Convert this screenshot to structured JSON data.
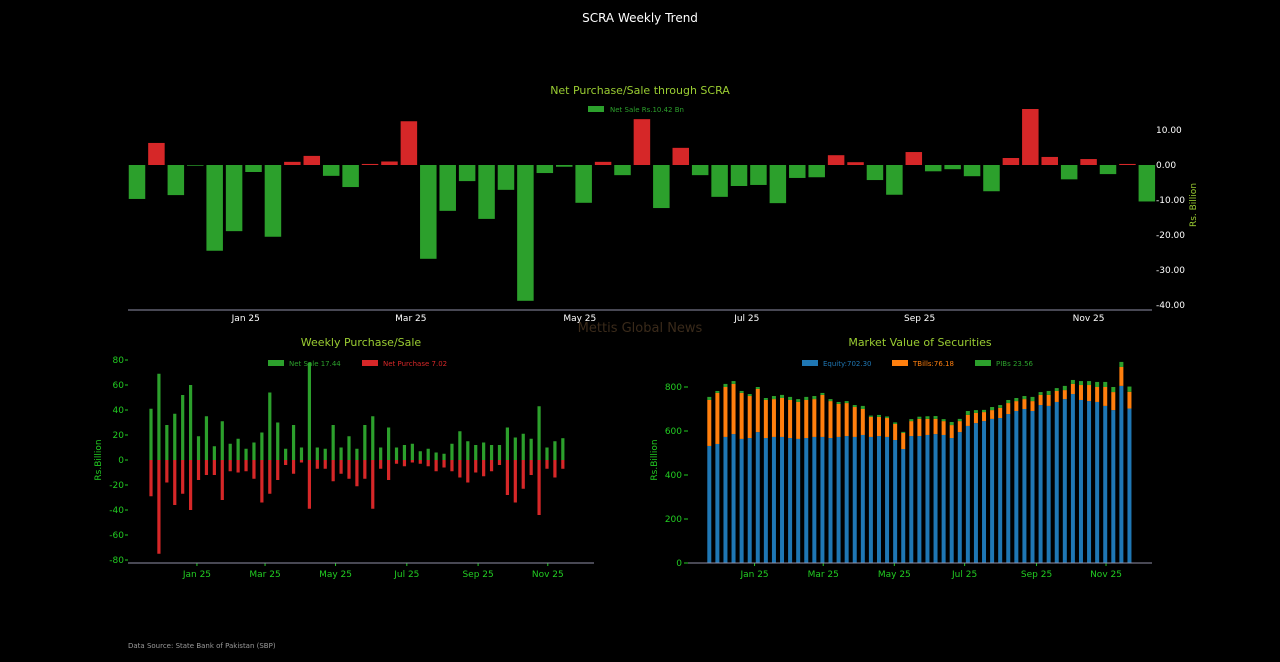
{
  "page": {
    "title": "SCRA Weekly Trend",
    "watermark": "Mettis Global News",
    "source": "Data Source: State Bank of Pakistan (SBP)"
  },
  "colors": {
    "sale": "#2ca02c",
    "purchase": "#d62728",
    "equity": "#1f77b4",
    "tbills": "#ff7f0e",
    "pibs": "#2ca02c",
    "title": "#9acd32",
    "axis_green": "#22cc22",
    "axis_white": "#ffffff"
  },
  "chart_data": [
    {
      "id": "net",
      "type": "bar",
      "title": "Net Purchase/Sale through SCRA",
      "legend": [
        "Net Sale Rs.10.42 Bn"
      ],
      "ylabel": "Rs. Billion",
      "ylim": [
        -40,
        15
      ],
      "yticks": [
        10,
        0,
        -10,
        -20,
        -30,
        -40
      ],
      "ytick_labels": [
        "10.00",
        "0.00",
        "-10.00",
        "-20.00",
        "-30.00",
        "-40.00"
      ],
      "xticks": [
        {
          "label": "Jan 25",
          "week": 5.6
        },
        {
          "label": "Mar 25",
          "week": 14.1
        },
        {
          "label": "May 25",
          "week": 22.8
        },
        {
          "label": "Jul 25",
          "week": 31.4
        },
        {
          "label": "Sep 25",
          "week": 40.3
        },
        {
          "label": "Nov 25",
          "week": 49.0
        }
      ],
      "values": [
        -9.7,
        6.3,
        -8.6,
        -0.2,
        -24.5,
        -18.9,
        -2.0,
        -20.5,
        0.9,
        2.6,
        -3.1,
        -6.3,
        0.3,
        1.0,
        12.5,
        -26.8,
        -13.1,
        -4.6,
        -15.4,
        -7.1,
        -38.8,
        -2.3,
        -0.5,
        -10.8,
        0.9,
        -2.9,
        13.1,
        -12.3,
        4.9,
        -2.9,
        -9.1,
        -6.0,
        -5.7,
        -10.9,
        -3.7,
        -3.5,
        2.8,
        0.8,
        -4.3,
        -8.5,
        3.7,
        -1.8,
        -1.2,
        -3.2,
        -7.5,
        2.0,
        16.0,
        2.3,
        -4.1,
        1.7,
        -2.6,
        0.3,
        -10.42
      ]
    },
    {
      "id": "weekly",
      "type": "bar",
      "title": "Weekly Purchase/Sale",
      "legend": [
        "Net Sale 17.44",
        "Net Purchase 7.02"
      ],
      "ylabel": "Rs.Billion",
      "ylim": [
        -80,
        80
      ],
      "yticks": [
        80,
        60,
        40,
        20,
        0,
        -20,
        -40,
        -60,
        -80
      ],
      "xticks": [
        {
          "label": "Jan 25",
          "week": 5.8
        },
        {
          "label": "Mar 25",
          "week": 14.4
        },
        {
          "label": "May 25",
          "week": 23.3
        },
        {
          "label": "Jul 25",
          "week": 32.3
        },
        {
          "label": "Sep 25",
          "week": 41.3
        },
        {
          "label": "Nov 25",
          "week": 50.1
        }
      ],
      "series": [
        {
          "name": "Sale",
          "values": [
            41,
            69,
            28,
            37,
            52,
            60,
            19,
            35,
            11,
            31,
            13,
            17,
            9,
            14,
            22,
            54,
            30,
            9,
            28,
            10,
            78,
            10,
            9,
            28,
            10,
            19,
            9,
            28,
            35,
            10,
            26,
            10,
            12,
            13,
            7,
            9,
            6,
            5,
            13,
            23,
            15,
            12,
            14,
            12,
            12,
            26,
            18,
            21,
            17,
            43,
            10,
            15,
            17.44
          ]
        },
        {
          "name": "Purchase",
          "values": [
            -29,
            -75,
            -18,
            -36,
            -27,
            -40,
            -16,
            -12,
            -12,
            -32,
            -9,
            -10,
            -9,
            -15,
            -34,
            -27,
            -16,
            -4,
            -11,
            -2,
            -39,
            -7,
            -7,
            -17,
            -11,
            -15,
            -21,
            -15,
            -39,
            -7,
            -16,
            -3,
            -5,
            -2,
            -3,
            -5,
            -9,
            -6,
            -9,
            -14,
            -18,
            -10,
            -13,
            -9,
            -4,
            -28,
            -34,
            -23,
            -12,
            -44,
            -7,
            -14,
            -7.02
          ]
        }
      ]
    },
    {
      "id": "market",
      "type": "bar",
      "stacked": true,
      "title": "Market Value of Securities",
      "legend": [
        "Equity:702.30",
        "TBills:76.18",
        "PIBs 23.56"
      ],
      "ylabel": "Rs.Billion",
      "ylim": [
        0,
        920
      ],
      "yticks": [
        0,
        200,
        400,
        600,
        800
      ],
      "xticks": [
        {
          "label": "Jan 25",
          "week": 5.6
        },
        {
          "label": "Mar 25",
          "week": 14.1
        },
        {
          "label": "May 25",
          "week": 22.9
        },
        {
          "label": "Jul 25",
          "week": 31.6
        },
        {
          "label": "Sep 25",
          "week": 40.5
        },
        {
          "label": "Nov 25",
          "week": 49.1
        }
      ],
      "series": [
        {
          "name": "Equity",
          "values": [
            532,
            541,
            573,
            586,
            564,
            568,
            595,
            568,
            573,
            573,
            568,
            564,
            568,
            573,
            573,
            568,
            573,
            577,
            573,
            582,
            573,
            577,
            573,
            559,
            518,
            577,
            577,
            582,
            586,
            582,
            568,
            595,
            623,
            636,
            645,
            655,
            659,
            677,
            691,
            700,
            691,
            718,
            714,
            732,
            745,
            768,
            741,
            736,
            732,
            714,
            695,
            805,
            702.3
          ]
        },
        {
          "name": "TBills",
          "values": [
            209,
            232,
            227,
            228,
            209,
            191,
            196,
            173,
            172,
            177,
            173,
            168,
            173,
            172,
            191,
            168,
            150,
            150,
            136,
            118,
            91,
            87,
            86,
            73,
            73,
            68,
            78,
            73,
            69,
            63,
            59,
            50,
            50,
            46,
            41,
            40,
            46,
            50,
            45,
            45,
            45,
            46,
            50,
            50,
            41,
            46,
            68,
            73,
            68,
            86,
            82,
            86,
            76.18
          ]
        },
        {
          "name": "PIBs",
          "values": [
            14,
            9,
            14,
            13,
            9,
            9,
            9,
            9,
            14,
            14,
            14,
            13,
            14,
            14,
            9,
            9,
            9,
            9,
            9,
            14,
            6,
            9,
            7,
            7,
            5,
            9,
            10,
            12,
            13,
            9,
            14,
            10,
            18,
            13,
            10,
            14,
            13,
            14,
            14,
            14,
            19,
            13,
            18,
            13,
            19,
            18,
            18,
            18,
            23,
            23,
            23,
            23,
            23.56
          ]
        }
      ]
    }
  ]
}
